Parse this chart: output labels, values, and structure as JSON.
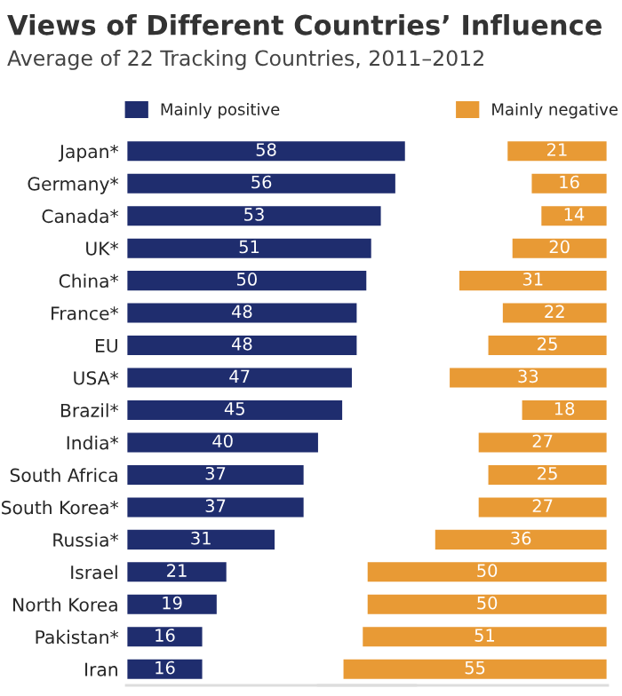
{
  "chart_data": [
    {
      "type": "bar",
      "orientation": "horizontal",
      "title": "Views of Different Countries’ Influence",
      "subtitle": "Average of 22 Tracking Countries, 2011–2012",
      "categories": [
        "Japan*",
        "Germany*",
        "Canada*",
        "UK*",
        "China*",
        "France*",
        "EU",
        "USA*",
        "Brazil*",
        "India*",
        "South Africa",
        "South Korea*",
        "Russia*",
        "Israel",
        "North Korea",
        "Pakistan*",
        "Iran"
      ],
      "series": [
        {
          "name": "Mainly positive",
          "color": "#1f2d6e",
          "values": [
            58,
            56,
            53,
            51,
            50,
            48,
            48,
            47,
            45,
            40,
            37,
            37,
            31,
            21,
            19,
            16,
            16
          ]
        }
      ],
      "xlim": [
        0,
        60
      ],
      "data_labels": true,
      "legend": "top",
      "tick_labels": "y"
    },
    {
      "type": "bar",
      "orientation": "horizontal",
      "categories": [
        null,
        null,
        null,
        null,
        null,
        null,
        null,
        null,
        null,
        null,
        null,
        null,
        null,
        null,
        null,
        null,
        null
      ],
      "series": [
        {
          "name": "Mainly negative",
          "color": "#e89a35",
          "values": [
            21,
            16,
            14,
            20,
            31,
            22,
            25,
            33,
            18,
            27,
            25,
            27,
            36,
            50,
            50,
            51,
            55
          ]
        }
      ],
      "xlim": [
        60,
        0
      ],
      "data_labels": true,
      "legend": "top",
      "tick_labels": false
    }
  ]
}
